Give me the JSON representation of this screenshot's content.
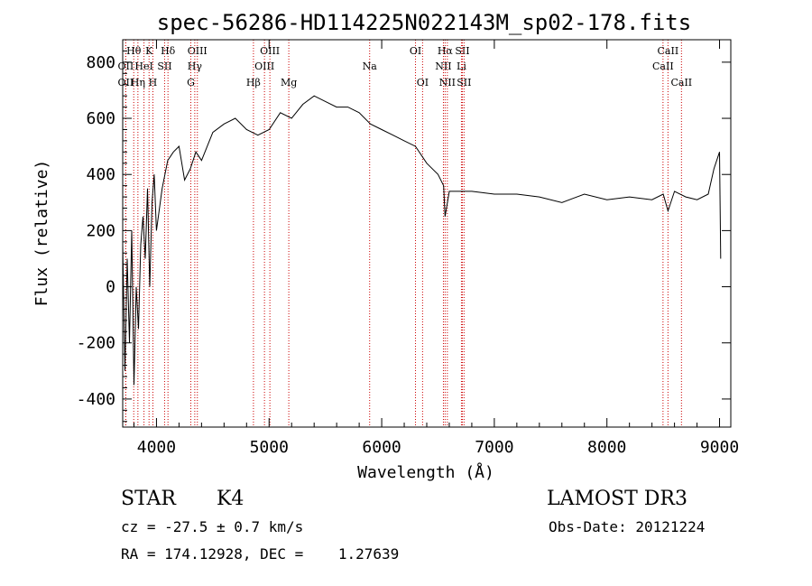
{
  "chart_data": {
    "type": "line",
    "title": "spec-56286-HD114225N022143M_sp02-178.fits",
    "xlabel": "Wavelength (Å)",
    "ylabel": "Flux (relative)",
    "xlim": [
      3700,
      9100
    ],
    "ylim": [
      -500,
      880
    ],
    "xticks": [
      4000,
      5000,
      6000,
      7000,
      8000,
      9000
    ],
    "yticks": [
      -400,
      -200,
      0,
      200,
      400,
      600,
      800
    ],
    "color": "#000000",
    "line_color": "#cc0000",
    "grid": false,
    "series": [
      {
        "x": [
          3700,
          3720,
          3740,
          3760,
          3780,
          3800,
          3820,
          3840,
          3860,
          3880,
          3900,
          3920,
          3940,
          3960,
          3980,
          4000,
          4050,
          4100,
          4150,
          4200,
          4250,
          4300,
          4350,
          4400,
          4500,
          4600,
          4700,
          4800,
          4900,
          5000,
          5100,
          5200,
          5300,
          5400,
          5500,
          5600,
          5700,
          5800,
          5900,
          6000,
          6100,
          6200,
          6300,
          6400,
          6500,
          6550,
          6563,
          6600,
          6700,
          6800,
          7000,
          7200,
          7400,
          7600,
          7800,
          8000,
          8200,
          8400,
          8500,
          8542,
          8600,
          8700,
          8800,
          8900,
          8950,
          9000,
          9010
        ],
        "y": [
          150,
          -300,
          100,
          -200,
          200,
          -350,
          0,
          -150,
          150,
          250,
          100,
          350,
          0,
          300,
          400,
          200,
          350,
          450,
          480,
          500,
          380,
          420,
          480,
          450,
          550,
          580,
          600,
          560,
          540,
          560,
          620,
          600,
          650,
          680,
          660,
          640,
          640,
          620,
          580,
          560,
          540,
          520,
          500,
          440,
          400,
          360,
          250,
          340,
          340,
          340,
          330,
          330,
          320,
          300,
          330,
          310,
          320,
          310,
          330,
          270,
          340,
          320,
          310,
          330,
          420,
          480,
          100
        ]
      }
    ],
    "spectral_lines": [
      {
        "label": "Hθ",
        "x": 3798,
        "row": 0
      },
      {
        "label": "OII",
        "x": 3727,
        "row": 1
      },
      {
        "label": "OII",
        "x": 3727,
        "row": 2
      },
      {
        "label": "K",
        "x": 3934,
        "row": 0
      },
      {
        "label": "HeI",
        "x": 3889,
        "row": 1
      },
      {
        "label": "Hη",
        "x": 3835,
        "row": 2
      },
      {
        "label": "Hδ",
        "x": 4102,
        "row": 0
      },
      {
        "label": "SII",
        "x": 4072,
        "row": 1
      },
      {
        "label": "H",
        "x": 3968,
        "row": 2
      },
      {
        "label": "OIII",
        "x": 4363,
        "row": 0
      },
      {
        "label": "Hγ",
        "x": 4340,
        "row": 1
      },
      {
        "label": "G",
        "x": 4305,
        "row": 2
      },
      {
        "label": "OIII",
        "x": 5007,
        "row": 0
      },
      {
        "label": "OIII",
        "x": 4959,
        "row": 1
      },
      {
        "label": "Hβ",
        "x": 4861,
        "row": 2
      },
      {
        "label": "Mg",
        "x": 5175,
        "row": 2
      },
      {
        "label": "Na",
        "x": 5893,
        "row": 1
      },
      {
        "label": "OI",
        "x": 6300,
        "row": 0
      },
      {
        "label": "OI",
        "x": 6363,
        "row": 2
      },
      {
        "label": "Hα",
        "x": 6563,
        "row": 0
      },
      {
        "label": "SII",
        "x": 6716,
        "row": 0
      },
      {
        "label": "NII",
        "x": 6548,
        "row": 1
      },
      {
        "label": "Li",
        "x": 6708,
        "row": 1
      },
      {
        "label": "NII",
        "x": 6583,
        "row": 2
      },
      {
        "label": "SII",
        "x": 6731,
        "row": 2
      },
      {
        "label": "CaII",
        "x": 8542,
        "row": 0
      },
      {
        "label": "CaII",
        "x": 8498,
        "row": 1
      },
      {
        "label": "CaII",
        "x": 8662,
        "row": 2
      }
    ]
  },
  "info": {
    "class": "STAR",
    "subclass": "K4",
    "survey": "LAMOST DR3",
    "cz": "cz = -27.5 ± 0.7 km/s",
    "obs_date": "Obs-Date: 20121224",
    "radec": "RA = 174.12928, DEC =    1.27639"
  }
}
